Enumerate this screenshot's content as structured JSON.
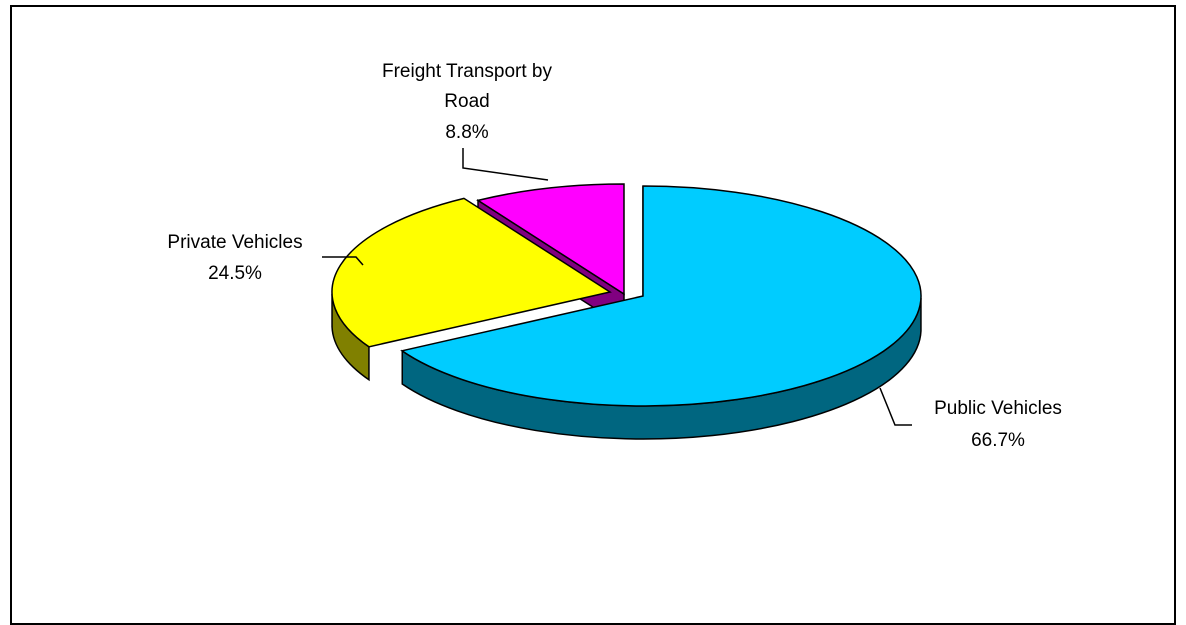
{
  "chart_data": {
    "type": "pie",
    "style": "3d-exploded",
    "slices": [
      {
        "label": "Public Vehicles",
        "value": 66.7,
        "value_label": "66.7%",
        "color": "#00CCFF",
        "side_color": "#006680"
      },
      {
        "label": "Private Vehicles",
        "value": 24.5,
        "value_label": "24.5%",
        "color": "#FFFF00",
        "side_color": "#808000"
      },
      {
        "label_lines": [
          "Freight Transport by",
          "Road"
        ],
        "value": 8.8,
        "value_label": "8.8%",
        "color": "#FF00FF",
        "side_color": "#800080"
      }
    ]
  }
}
